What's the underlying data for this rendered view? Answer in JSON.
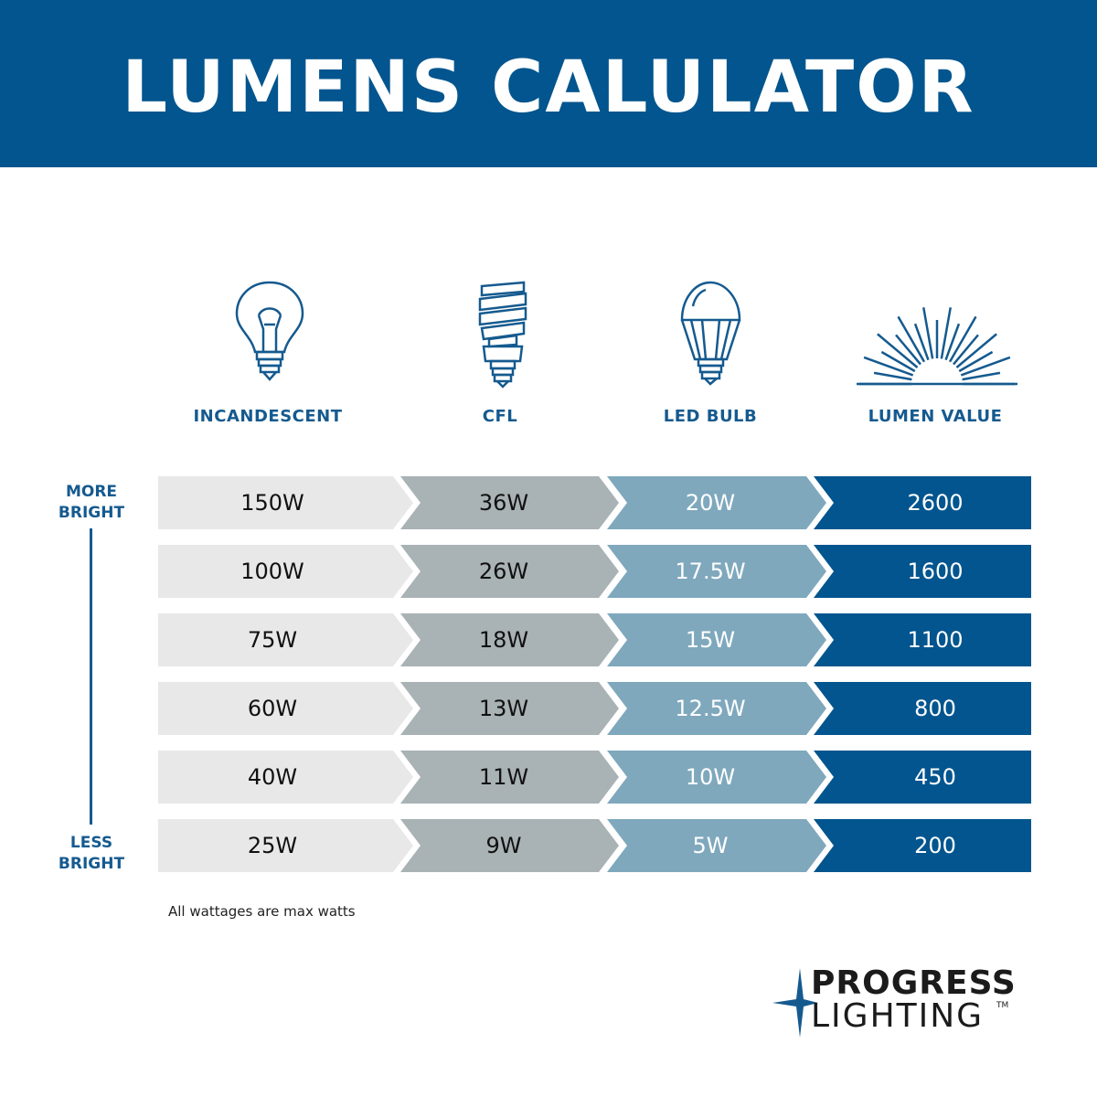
{
  "header": {
    "title": "LUMENS CALULATOR"
  },
  "columns": [
    "INCANDESCENT",
    "CFL",
    "LED BULB",
    "LUMEN VALUE"
  ],
  "icons": [
    "incandescent-bulb-icon",
    "cfl-bulb-icon",
    "led-bulb-icon",
    "lumen-rays-icon"
  ],
  "scale": {
    "top": [
      "MORE",
      "BRIGHT"
    ],
    "bottom": [
      "LESS",
      "BRIGHT"
    ]
  },
  "rows": [
    [
      "150W",
      "36W",
      "20W",
      "2600"
    ],
    [
      "100W",
      "26W",
      "17.5W",
      "1600"
    ],
    [
      "75W",
      "18W",
      "15W",
      "1100"
    ],
    [
      "60W",
      "13W",
      "12.5W",
      "800"
    ],
    [
      "40W",
      "11W",
      "10W",
      "450"
    ],
    [
      "25W",
      "9W",
      "5W",
      "200"
    ]
  ],
  "note": "All wattages are max watts",
  "logo": {
    "line1": "PROGRESS",
    "line2": "LIGHTING",
    "tm": "TM"
  },
  "colors": {
    "brand": "#02558e",
    "incandescent": "#e8e8e8",
    "cfl": "#a9b2b4",
    "led": "#7fa8bd",
    "lumen": "#02558e"
  }
}
